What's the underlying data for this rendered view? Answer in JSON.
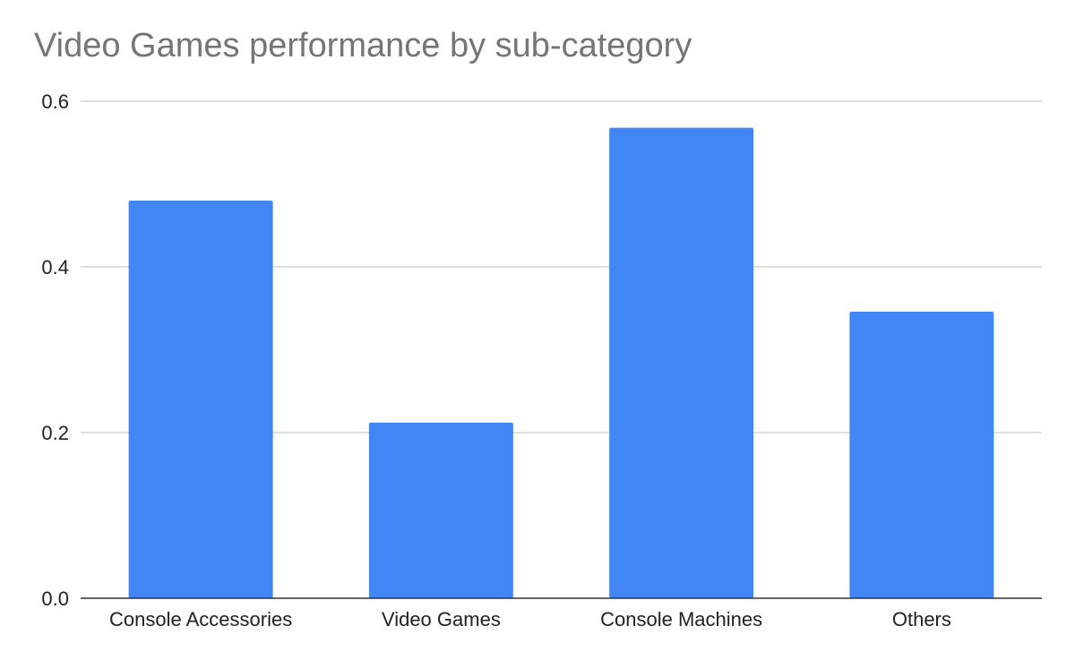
{
  "chart_data": {
    "type": "bar",
    "title": "Video Games performance by sub-category",
    "xlabel": "",
    "ylabel": "",
    "categories": [
      "Console Accessories",
      "Video Games",
      "Console Machines",
      "Others"
    ],
    "values": [
      0.48,
      0.212,
      0.568,
      0.346
    ],
    "ylim": [
      0,
      0.6
    ],
    "yticks": [
      "0.0",
      "0.2",
      "0.4",
      "0.6"
    ],
    "grid": true,
    "legend": "none",
    "colors": {
      "bar": "#4285f4",
      "grid": "#cccccc",
      "axis": "#333333",
      "title": "#757575",
      "tick_text": "#222222"
    }
  }
}
